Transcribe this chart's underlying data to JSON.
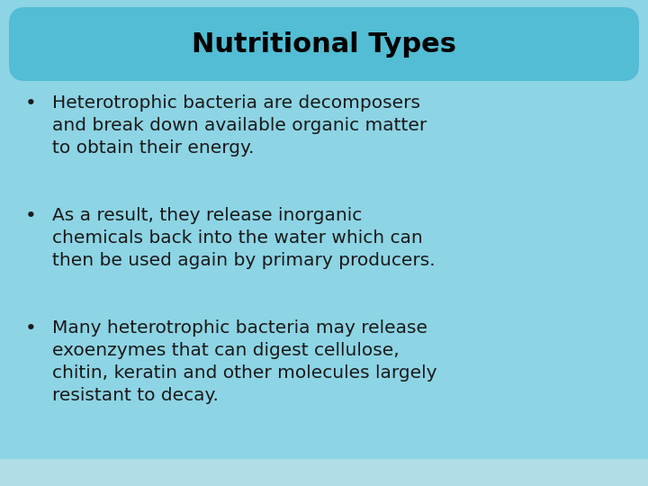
{
  "title": "Nutritional Types",
  "title_fontsize": 22,
  "title_color": "#000000",
  "title_bg_color": "#52bdd4",
  "body_bg_color": "#8dd4e4",
  "bottom_bar_color": "#a8dce8",
  "bullet_points": [
    "Heterotrophic bacteria are decomposers\nand break down available organic matter\nto obtain their energy.",
    "As a result, they release inorganic\nchemicals back into the water which can\nthen be used again by primary producers.",
    "Many heterotrophic bacteria may release\nexoenzymes that can digest cellulose,\nchitin, keratin and other molecules largely\nresistant to decay."
  ],
  "bullet_fontsize": 14.5,
  "bullet_color": "#1a1a1a",
  "bullet_symbol": "•",
  "fig_width": 7.2,
  "fig_height": 5.4,
  "dpi": 100
}
